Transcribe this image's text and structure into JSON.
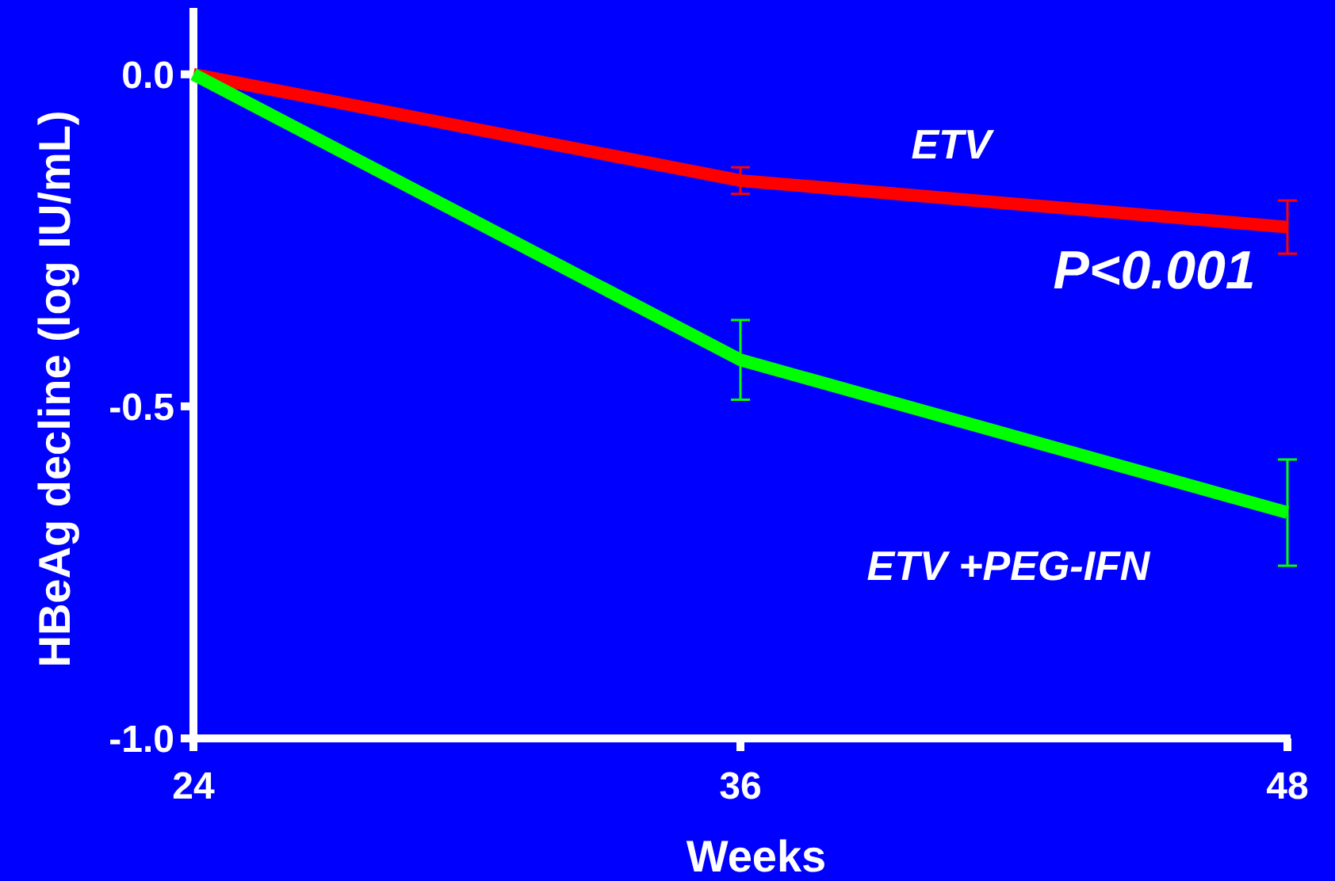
{
  "chart_data": {
    "type": "line",
    "xlabel": "Weeks",
    "ylabel": "HBeAg decline (log IU/mL)",
    "x": [
      24,
      36,
      48
    ],
    "series": [
      {
        "name": "ETV",
        "color": "#ff0000",
        "values": [
          0,
          -0.16,
          -0.23
        ],
        "errors": [
          null,
          0.02,
          0.04
        ]
      },
      {
        "name": "ETV +PEG-IFN",
        "color": "#00ff00",
        "values": [
          0,
          -0.43,
          -0.66
        ],
        "errors": [
          null,
          0.06,
          0.08
        ]
      }
    ],
    "xlim": [
      24,
      48
    ],
    "xticks": [
      24,
      36,
      48
    ],
    "ylim": [
      -1.0,
      0.1
    ],
    "yticks": [
      {
        "value": 0,
        "label": "0.0"
      },
      {
        "value": -0.5,
        "label": "-0.5"
      },
      {
        "value": -1.0,
        "label": "-1.0"
      }
    ],
    "annotations": [
      "P<0.001"
    ],
    "grid": false,
    "legend": false,
    "marker": "none",
    "line_style": "solid"
  }
}
